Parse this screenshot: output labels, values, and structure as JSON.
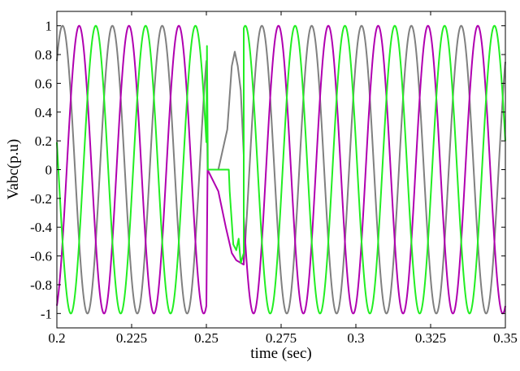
{
  "chart_data": {
    "type": "line",
    "xlabel": "time (sec)",
    "ylabel": "Vabc(p.u)",
    "xlim": [
      0.2,
      0.35
    ],
    "ylim": [
      -1.1,
      1.1
    ],
    "x_ticks": [
      0.2,
      0.225,
      0.25,
      0.275,
      0.3,
      0.325,
      0.35
    ],
    "x_tick_labels": [
      "0.2",
      "0.225",
      "0.25",
      "0.275",
      "0.3",
      "0.325",
      "0.35"
    ],
    "y_ticks": [
      1,
      0.8,
      0.6,
      0.4,
      0.2,
      0,
      -0.2,
      -0.4,
      -0.6,
      -0.8,
      -1
    ],
    "y_tick_labels": [
      "1",
      "0.8",
      "0.6",
      "0.4",
      "0.2",
      "0",
      "-0.2",
      "-0.4",
      "-0.6",
      "-0.8",
      "-1"
    ],
    "grid": false,
    "legend": "none",
    "frequency_hz": 60,
    "fault_interval": [
      0.25,
      0.2625
    ],
    "series": [
      {
        "color": "#808080",
        "amplitude": 1.0,
        "phase_deg": 49,
        "fault_points": [
          {
            "x": 0.2504,
            "y": 0.0
          },
          {
            "x": 0.254,
            "y": 0.0
          },
          {
            "x": 0.257,
            "y": 0.28
          },
          {
            "x": 0.2585,
            "y": 0.72
          },
          {
            "x": 0.2595,
            "y": 0.82
          },
          {
            "x": 0.2605,
            "y": 0.72
          },
          {
            "x": 0.2615,
            "y": 0.55
          },
          {
            "x": 0.2625,
            "y": 0.1
          }
        ]
      },
      {
        "color": "#b000b0",
        "amplitude": 1.0,
        "phase_deg": -71,
        "fault_points": [
          {
            "x": 0.2504,
            "y": 0.0
          },
          {
            "x": 0.254,
            "y": -0.15
          },
          {
            "x": 0.2565,
            "y": -0.4
          },
          {
            "x": 0.2585,
            "y": -0.58
          },
          {
            "x": 0.26,
            "y": -0.63
          },
          {
            "x": 0.2625,
            "y": -0.66
          }
        ]
      },
      {
        "color": "#22ee22",
        "amplitude": 1.0,
        "phase_deg": 169,
        "fault_points": [
          {
            "x": 0.2502,
            "y": 0.86
          },
          {
            "x": 0.2505,
            "y": 0.0
          },
          {
            "x": 0.2575,
            "y": 0.0
          },
          {
            "x": 0.2578,
            "y": -0.15
          },
          {
            "x": 0.259,
            "y": -0.52
          },
          {
            "x": 0.26,
            "y": -0.56
          },
          {
            "x": 0.2608,
            "y": -0.48
          },
          {
            "x": 0.2615,
            "y": -0.65
          },
          {
            "x": 0.2625,
            "y": -0.58
          }
        ]
      }
    ]
  }
}
